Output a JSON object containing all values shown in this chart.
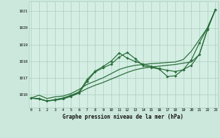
{
  "title": "Graphe pression niveau de la mer (hPa)",
  "xlabel_hours": [
    0,
    1,
    2,
    3,
    4,
    5,
    6,
    7,
    8,
    9,
    10,
    11,
    12,
    13,
    14,
    15,
    16,
    17,
    18,
    19,
    20,
    21,
    22,
    23
  ],
  "ylim": [
    1015.2,
    1021.6
  ],
  "yticks": [
    1016,
    1017,
    1018,
    1019,
    1020,
    1021
  ],
  "bg_color": "#cce8dc",
  "plot_bg": "#d4eee4",
  "grid_color": "#aaccbb",
  "line_color": "#2a6e3a",
  "series": {
    "line1_nomarker": [
      1015.78,
      1015.95,
      1015.75,
      1015.85,
      1015.9,
      1016.05,
      1016.3,
      1016.6,
      1016.8,
      1017.0,
      1017.25,
      1017.5,
      1017.65,
      1017.75,
      1017.8,
      1017.85,
      1017.88,
      1017.92,
      1017.95,
      1018.1,
      1018.6,
      1019.3,
      1020.0,
      1021.1
    ],
    "line2_nomarker": [
      1015.78,
      1015.75,
      1015.6,
      1015.68,
      1015.78,
      1015.92,
      1016.1,
      1016.35,
      1016.55,
      1016.72,
      1016.92,
      1017.12,
      1017.32,
      1017.48,
      1017.58,
      1017.65,
      1017.7,
      1017.75,
      1017.8,
      1017.88,
      1017.95,
      1018.4,
      1019.9,
      1021.1
    ],
    "line3_marker": [
      1015.78,
      1015.72,
      1015.6,
      1015.65,
      1015.72,
      1015.88,
      1016.08,
      1016.8,
      1017.35,
      1017.6,
      1017.82,
      1018.25,
      1018.52,
      1018.15,
      1017.72,
      1017.62,
      1017.52,
      1017.08,
      1017.12,
      1017.5,
      1017.75,
      1018.42,
      1019.9,
      1021.1
    ],
    "line4_marker": [
      1015.78,
      1015.72,
      1015.6,
      1015.68,
      1015.78,
      1015.95,
      1016.15,
      1016.9,
      1017.4,
      1017.68,
      1018.0,
      1018.5,
      1018.18,
      1017.98,
      1017.82,
      1017.68,
      1017.55,
      1017.45,
      1017.38,
      1017.48,
      1018.08,
      1019.1,
      1020.0,
      1021.1
    ]
  }
}
